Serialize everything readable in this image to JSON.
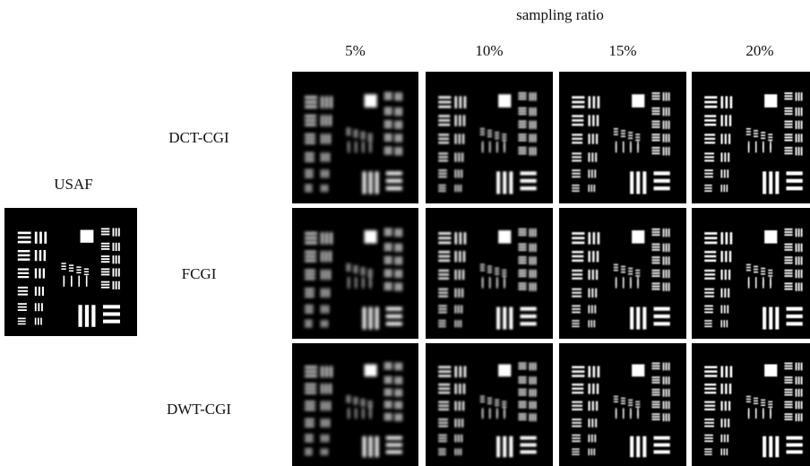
{
  "header": {
    "title": "sampling ratio",
    "columns": [
      "5%",
      "10%",
      "15%",
      "20%"
    ]
  },
  "reference": {
    "label": "USAF"
  },
  "rows": [
    {
      "label": "DCT-CGI"
    },
    {
      "label": "FCGI"
    },
    {
      "label": "DWT-CGI"
    }
  ]
}
